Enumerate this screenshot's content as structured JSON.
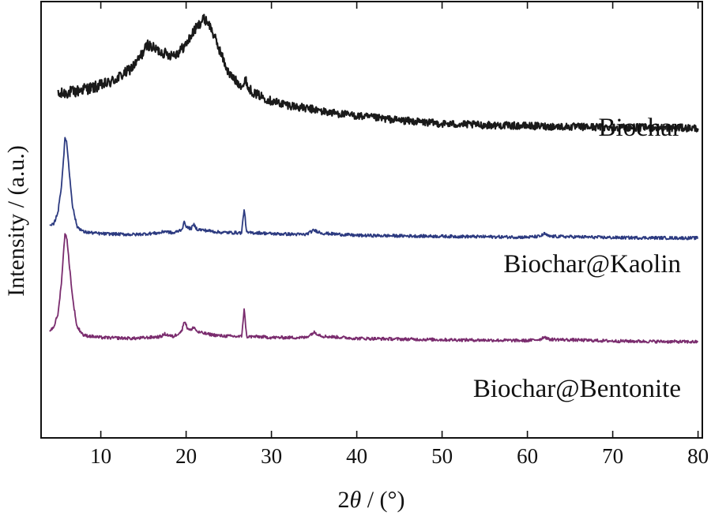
{
  "chart_data": {
    "type": "line",
    "xlabel_prefix": "2",
    "xlabel_symbol": "θ",
    "xlabel_suffix": " / (°)",
    "ylabel": "Intensity / (a.u.)",
    "xlim": [
      3,
      80.5
    ],
    "ylim": [
      0,
      100
    ],
    "x_ticks": [
      10,
      20,
      30,
      40,
      50,
      60,
      70,
      80
    ],
    "x_tick_labels": [
      "10",
      "20",
      "30",
      "40",
      "50",
      "60",
      "70",
      "80"
    ],
    "y_ticks_labeled": false,
    "series": [
      {
        "name": "Biochar",
        "color": "#1a1a1a",
        "noise": 1.4,
        "points": [
          [
            5.0,
            78.5
          ],
          [
            6.0,
            79.2
          ],
          [
            7.0,
            79.3
          ],
          [
            8.0,
            80.0
          ],
          [
            9.0,
            80.2
          ],
          [
            10.0,
            80.8
          ],
          [
            11.0,
            81.4
          ],
          [
            12.0,
            82.5
          ],
          [
            13.0,
            83.8
          ],
          [
            14.0,
            85.5
          ],
          [
            15.0,
            88.5
          ],
          [
            15.5,
            90.2
          ],
          [
            16.0,
            89.5
          ],
          [
            17.0,
            88.5
          ],
          [
            18.0,
            87.8
          ],
          [
            19.0,
            88.2
          ],
          [
            20.0,
            90.2
          ],
          [
            21.0,
            93.5
          ],
          [
            22.0,
            96.0
          ],
          [
            22.5,
            95.5
          ],
          [
            23.0,
            93.5
          ],
          [
            24.0,
            88.5
          ],
          [
            25.0,
            83.5
          ],
          [
            26.0,
            81.5
          ],
          [
            26.8,
            80.5
          ],
          [
            27.0,
            82.8
          ],
          [
            27.2,
            80.3
          ],
          [
            28.0,
            79.0
          ],
          [
            30.0,
            77.2
          ],
          [
            32.0,
            76.3
          ],
          [
            34.0,
            75.5
          ],
          [
            35.0,
            75.3
          ],
          [
            36.0,
            74.8
          ],
          [
            38.0,
            74.3
          ],
          [
            40.0,
            73.8
          ],
          [
            45.0,
            72.8
          ],
          [
            50.0,
            72.0
          ],
          [
            55.0,
            71.7
          ],
          [
            60.0,
            71.5
          ],
          [
            65.0,
            71.3
          ],
          [
            70.0,
            71.2
          ],
          [
            75.0,
            71.1
          ],
          [
            80.0,
            71.0
          ]
        ]
      },
      {
        "name": "Biochar@Kaolin",
        "color": "#2c3a80",
        "noise": 0.35,
        "points": [
          [
            4.0,
            48.5
          ],
          [
            4.5,
            49.0
          ],
          [
            5.0,
            52.0
          ],
          [
            5.4,
            58.0
          ],
          [
            5.8,
            68.5
          ],
          [
            6.0,
            68.0
          ],
          [
            6.3,
            61.0
          ],
          [
            6.7,
            53.0
          ],
          [
            7.2,
            48.5
          ],
          [
            8.0,
            47.2
          ],
          [
            10.0,
            46.8
          ],
          [
            14.0,
            46.6
          ],
          [
            17.0,
            47.0
          ],
          [
            17.5,
            47.4
          ],
          [
            18.5,
            46.9
          ],
          [
            19.5,
            47.8
          ],
          [
            19.8,
            49.5
          ],
          [
            20.1,
            48.2
          ],
          [
            20.6,
            48.0
          ],
          [
            20.9,
            48.9
          ],
          [
            21.3,
            47.8
          ],
          [
            22.5,
            47.5
          ],
          [
            24.0,
            47.1
          ],
          [
            26.5,
            47.0
          ],
          [
            26.8,
            52.5
          ],
          [
            27.1,
            47.0
          ],
          [
            28.5,
            47.0
          ],
          [
            30.0,
            46.8
          ],
          [
            34.0,
            46.6
          ],
          [
            35.0,
            47.6
          ],
          [
            36.0,
            46.9
          ],
          [
            40.0,
            46.4
          ],
          [
            50.0,
            46.2
          ],
          [
            60.0,
            46.0
          ],
          [
            61.5,
            46.2
          ],
          [
            62.0,
            46.8
          ],
          [
            62.5,
            46.2
          ],
          [
            70.0,
            45.9
          ],
          [
            80.0,
            45.8
          ]
        ]
      },
      {
        "name": "Biochar@Bentonite",
        "color": "#7a2c6e",
        "noise": 0.35,
        "points": [
          [
            4.0,
            24.5
          ],
          [
            4.5,
            25.5
          ],
          [
            5.0,
            28.5
          ],
          [
            5.4,
            36.0
          ],
          [
            5.8,
            47.0
          ],
          [
            6.0,
            46.0
          ],
          [
            6.3,
            40.0
          ],
          [
            6.7,
            32.0
          ],
          [
            7.2,
            25.5
          ],
          [
            8.0,
            23.5
          ],
          [
            10.0,
            23.0
          ],
          [
            14.0,
            22.8
          ],
          [
            17.0,
            23.2
          ],
          [
            17.5,
            23.8
          ],
          [
            18.5,
            23.2
          ],
          [
            19.5,
            24.5
          ],
          [
            19.8,
            27.0
          ],
          [
            20.1,
            25.3
          ],
          [
            20.6,
            24.6
          ],
          [
            20.9,
            25.5
          ],
          [
            21.3,
            24.3
          ],
          [
            22.5,
            23.8
          ],
          [
            24.0,
            23.4
          ],
          [
            26.5,
            23.2
          ],
          [
            26.8,
            29.5
          ],
          [
            27.1,
            23.2
          ],
          [
            28.5,
            23.2
          ],
          [
            30.0,
            23.0
          ],
          [
            34.0,
            23.0
          ],
          [
            35.0,
            24.2
          ],
          [
            36.0,
            23.3
          ],
          [
            40.0,
            22.8
          ],
          [
            50.0,
            22.5
          ],
          [
            60.0,
            22.3
          ],
          [
            61.5,
            22.6
          ],
          [
            62.0,
            23.2
          ],
          [
            62.5,
            22.6
          ],
          [
            70.0,
            22.2
          ],
          [
            80.0,
            22.0
          ]
        ]
      }
    ],
    "labels": [
      {
        "text": "Biochar",
        "series": "Biochar"
      },
      {
        "text": "Biochar@Kaolin",
        "series": "Biochar@Kaolin"
      },
      {
        "text": "Biochar@Bentonite",
        "series": "Biochar@Bentonite"
      }
    ]
  }
}
